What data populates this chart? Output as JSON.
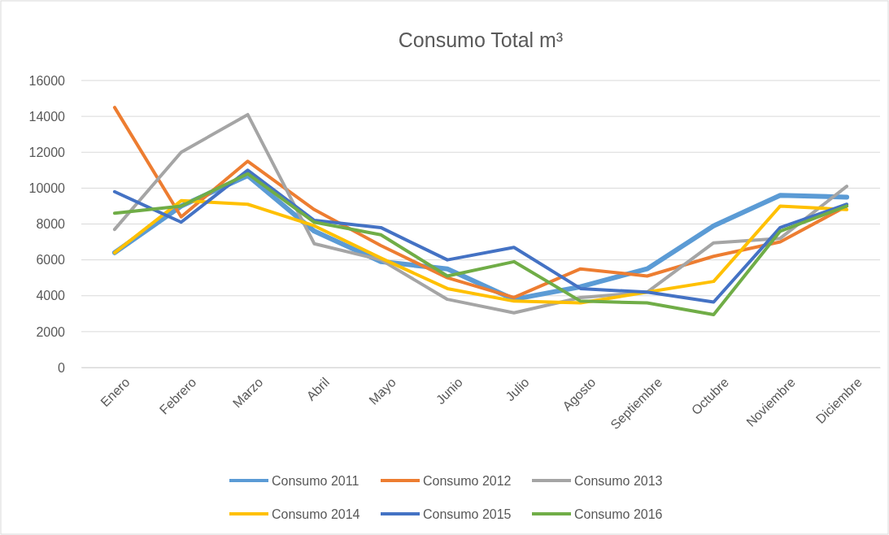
{
  "chart_data": {
    "type": "line",
    "title": "Consumo Total m³",
    "categories": [
      "Enero",
      "Febrero",
      "Marzo",
      "Abril",
      "Mayo",
      "Junio",
      "Julio",
      "Agosto",
      "Septiembre",
      "Octubre",
      "Noviembre",
      "Diciembre"
    ],
    "series": [
      {
        "name": "Consumo 2011",
        "color": "#5b9bd5",
        "values": [
          6400,
          9000,
          10700,
          7600,
          5900,
          5500,
          3800,
          4500,
          5500,
          7900,
          9600,
          9500
        ]
      },
      {
        "name": "Consumo 2012",
        "color": "#ed7d31",
        "values": [
          14500,
          8400,
          11500,
          8800,
          6800,
          5000,
          3900,
          5500,
          5100,
          6200,
          7000,
          9000
        ]
      },
      {
        "name": "Consumo 2013",
        "color": "#a5a5a5",
        "values": [
          7700,
          12000,
          14100,
          6900,
          6000,
          3800,
          3050,
          3900,
          4200,
          6950,
          7200,
          10100
        ]
      },
      {
        "name": "Consumo 2014",
        "color": "#ffc000",
        "values": [
          6400,
          9300,
          9100,
          7900,
          6100,
          4400,
          3700,
          3600,
          4200,
          4800,
          9000,
          8800
        ]
      },
      {
        "name": "Consumo 2015",
        "color": "#4472c4",
        "values": [
          9800,
          8100,
          11000,
          8200,
          7800,
          6000,
          6700,
          4400,
          4200,
          3650,
          7800,
          9100
        ]
      },
      {
        "name": "Consumo 2016",
        "color": "#70ad47",
        "values": [
          8600,
          9000,
          10800,
          8100,
          7400,
          5100,
          5900,
          3700,
          3600,
          2950,
          7600,
          9000
        ]
      }
    ],
    "ylim": [
      0,
      16000
    ],
    "yticks": [
      0,
      2000,
      4000,
      6000,
      8000,
      10000,
      12000,
      14000,
      16000
    ],
    "grid": "y",
    "legend": "bottom",
    "marker": "none",
    "line_style": "solid"
  }
}
